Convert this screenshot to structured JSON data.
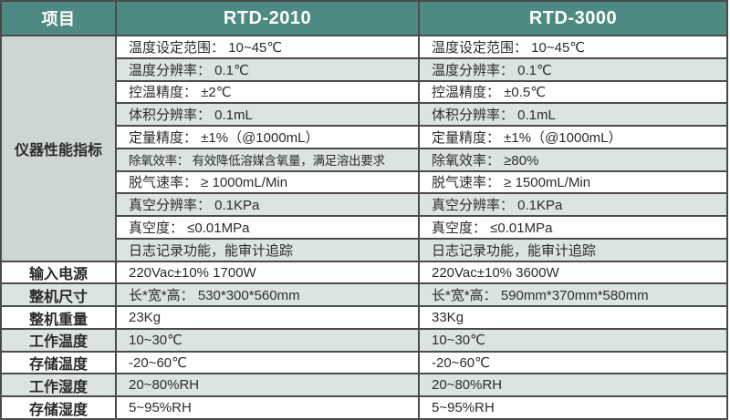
{
  "chart_data": {
    "type": "table",
    "columns": [
      "项目",
      "RTD-2010",
      "RTD-3000"
    ],
    "performance_section_label": "仪器性能指标",
    "performance_rows": [
      {
        "rtd2010": "温度设定范围： 10~45℃",
        "rtd3000": "温度设定范围： 10~45℃"
      },
      {
        "rtd2010": "温度分辨率： 0.1℃",
        "rtd3000": "温度分辨率： 0.1℃"
      },
      {
        "rtd2010": "控温精度： ±2℃",
        "rtd3000": "控温精度： ±0.5℃"
      },
      {
        "rtd2010": "体积分辨率： 0.1mL",
        "rtd3000": "体积分辨率： 0.1mL"
      },
      {
        "rtd2010": "定量精度： ±1%（@1000mL）",
        "rtd3000": "定量精度： ±1%（@1000mL）"
      },
      {
        "rtd2010": "除氧效率： 有效降低溶媒含氧量，满足溶出要求",
        "rtd3000": "除氧效率： ≥80%"
      },
      {
        "rtd2010": "脱气速率： ≥ 1000mL/Min",
        "rtd3000": "脱气速率： ≥ 1500mL/Min"
      },
      {
        "rtd2010": "真空分辨率： 0.1KPa",
        "rtd3000": "真空分辨率： 0.1KPa"
      },
      {
        "rtd2010": "真空度： ≤0.01MPa",
        "rtd3000": "真空度： ≤0.01MPa"
      },
      {
        "rtd2010": "日志记录功能，能审计追踪",
        "rtd3000": "日志记录功能，能审计追踪"
      }
    ],
    "spec_rows": [
      {
        "label": "输入电源",
        "rtd2010": "220Vac±10% 1700W",
        "rtd3000": "220Vac±10% 3600W"
      },
      {
        "label": "整机尺寸",
        "rtd2010": "长*宽*高： 530*300*560mm",
        "rtd3000": "长*宽*高： 590mm*370mm*580mm"
      },
      {
        "label": "整机重量",
        "rtd2010": "23Kg",
        "rtd3000": "33Kg"
      },
      {
        "label": "工作温度",
        "rtd2010": "10~30℃",
        "rtd3000": "10~30℃"
      },
      {
        "label": "存储温度",
        "rtd2010": "-20~60℃",
        "rtd3000": "-20~60℃"
      },
      {
        "label": "工作湿度",
        "rtd2010": "20~80%RH",
        "rtd3000": "20~80%RH"
      },
      {
        "label": "存储湿度",
        "rtd2010": "5~95%RH",
        "rtd3000": "5~95%RH"
      }
    ]
  },
  "colors": {
    "header_bg": "#4e8a84",
    "header_text": "#ffffff",
    "row_bg": "#fdfefe",
    "row_alt_bg": "#dbe4e2",
    "section_cell_bg": "#cdd6d2",
    "grid_line": "#4b4b4b",
    "body_text": "#2d2d2d"
  }
}
